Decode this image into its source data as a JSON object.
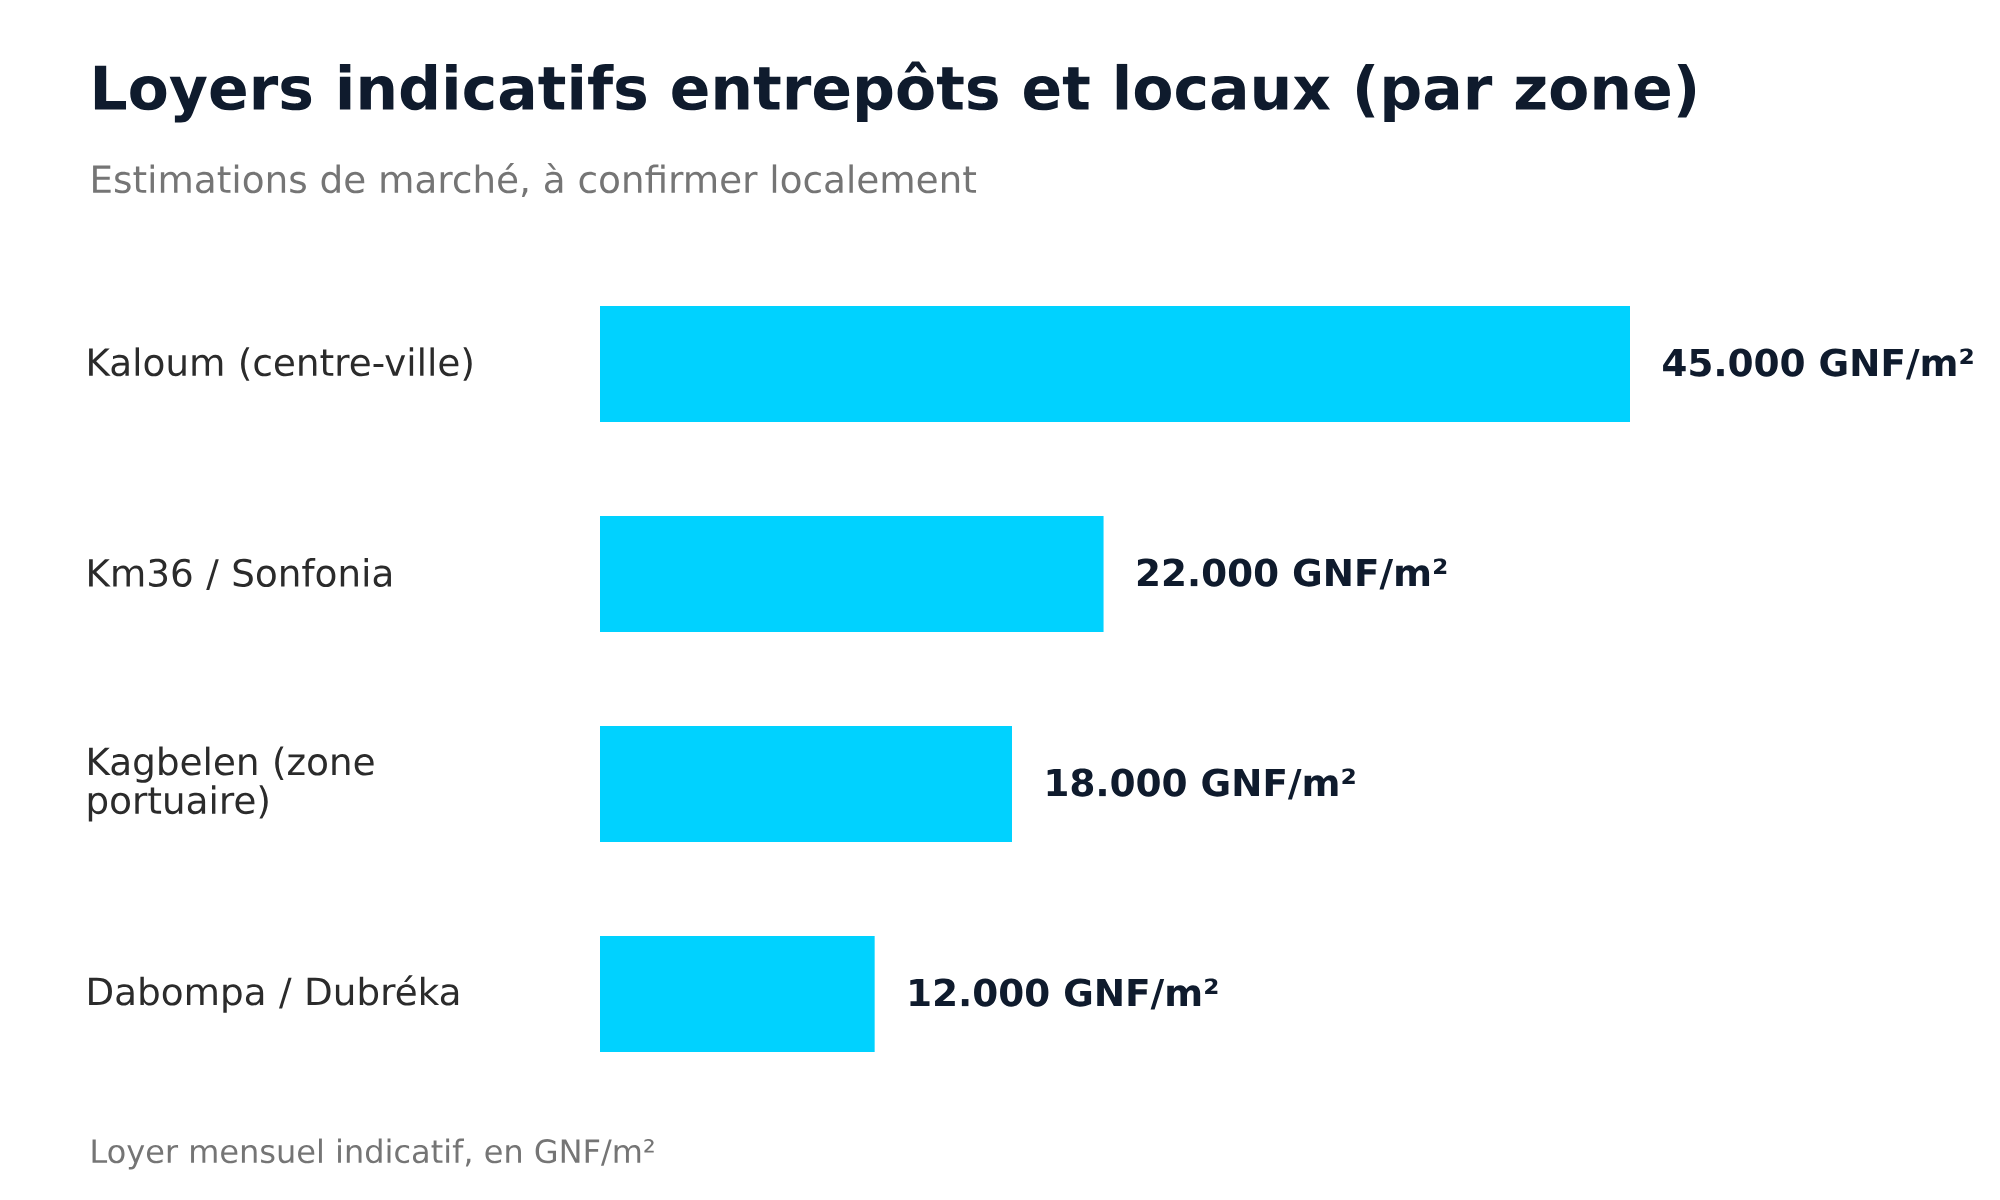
{
  "chart_data": {
    "type": "bar",
    "orientation": "horizontal",
    "title": "Loyers indicatifs entrepôts et locaux (par zone)",
    "subtitle": "Estimations de marché, à confirmer localement",
    "annotations": [
      "Loyer mensuel indicatif, en GNF/m²"
    ],
    "categories": [
      "Kaloum (centre-ville)",
      "Km36 / Sonfonia",
      "Kagbelen (zone portuaire)",
      "Dabompa / Dubréka"
    ],
    "values": [
      45000,
      22000,
      18000,
      12000
    ],
    "color": "#00d2ff",
    "value_labels": [
      "45.000 GNF/m²",
      "22.000 GNF/m²",
      "18.000 GNF/m²",
      "12.000 GNF/m²"
    ]
  }
}
